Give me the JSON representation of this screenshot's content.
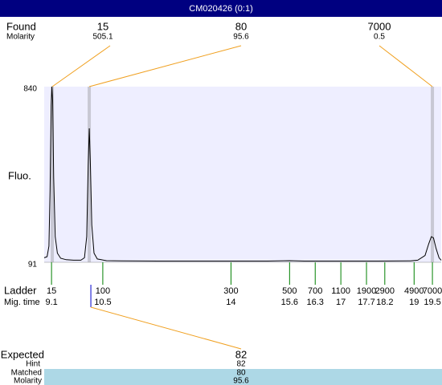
{
  "chart_data": {
    "type": "electropherogram",
    "title": "CM020426 (0:1)",
    "found": {
      "label": "Found",
      "molarity_label": "Molarity",
      "sizes": [
        15,
        80,
        7000
      ],
      "molarity": [
        505.1,
        95.6,
        0.5
      ],
      "times": [
        9.12,
        10.13,
        19.5
      ]
    },
    "y_label": "Fluo.",
    "ylim": [
      91,
      840
    ],
    "yticks": [
      91,
      840
    ],
    "xlim": [
      8.9,
      19.74
    ],
    "trace": {
      "color": "#000000",
      "x": [
        8.9,
        8.98,
        9.03,
        9.06,
        9.09,
        9.11,
        9.13,
        9.16,
        9.2,
        9.26,
        9.35,
        9.5,
        9.7,
        9.9,
        10.0,
        10.06,
        10.1,
        10.13,
        10.16,
        10.2,
        10.26,
        10.35,
        10.6,
        11,
        12,
        13,
        14,
        15,
        15.6,
        16,
        17,
        18,
        18.9,
        19.1,
        19.3,
        19.4,
        19.47,
        19.53,
        19.6,
        19.68,
        19.74
      ],
      "values": [
        110,
        115,
        160,
        400,
        760,
        840,
        780,
        450,
        200,
        130,
        108,
        102,
        100,
        100,
        110,
        200,
        500,
        662,
        520,
        250,
        130,
        105,
        98,
        97,
        96,
        96,
        96,
        96,
        98,
        96,
        96,
        96,
        97,
        100,
        120,
        170,
        200,
        195,
        150,
        110,
        100
      ]
    },
    "ladder": {
      "label": "Ladder",
      "time_label": "Mig. time",
      "color": "#008000",
      "sizes": [
        15,
        100,
        300,
        500,
        700,
        1100,
        1900,
        2900,
        4900,
        7000
      ],
      "times": [
        9.1,
        10.5,
        14,
        15.6,
        16.3,
        17,
        17.7,
        18.2,
        19,
        19.5
      ]
    },
    "expected": {
      "label": "Expected",
      "value": 82,
      "hint_label": "Hint",
      "hint": 82,
      "matched_label": "Matched",
      "matched": 80,
      "molarity_label": "Molarity",
      "molarity": 95.6
    }
  }
}
